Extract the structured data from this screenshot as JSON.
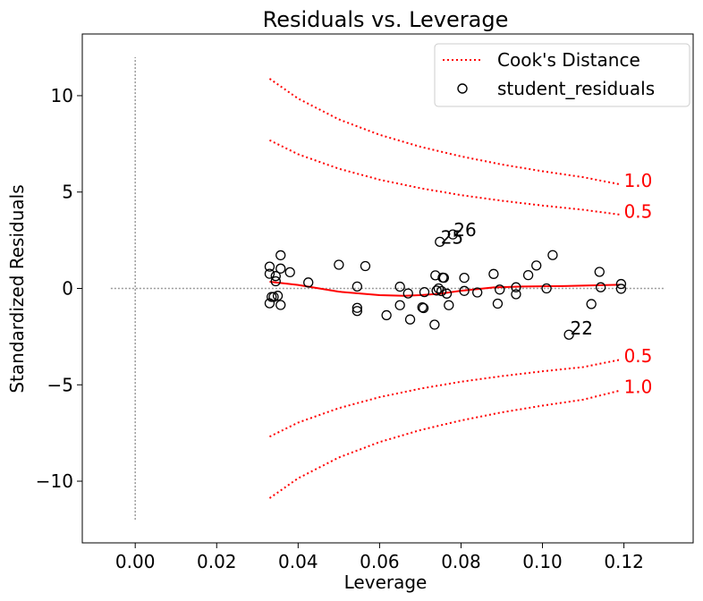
{
  "chart_data": {
    "type": "scatter",
    "title": "Residuals vs. Leverage",
    "xlabel": "Leverage",
    "ylabel": "Standardized Residuals",
    "xlim": [
      -0.013,
      0.137
    ],
    "ylim": [
      -13.2,
      13.2
    ],
    "xticks": [
      0.0,
      0.02,
      0.04,
      0.06,
      0.08,
      0.1,
      0.12
    ],
    "xtick_labels": [
      "0.00",
      "0.02",
      "0.04",
      "0.06",
      "0.08",
      "0.10",
      "0.12"
    ],
    "yticks": [
      10,
      5,
      0,
      -5,
      -10
    ],
    "ytick_labels": [
      "10",
      "5",
      "0",
      "−5",
      "−10"
    ],
    "grid": false,
    "legend_position": "top-right",
    "colors": {
      "cooks": "#ff0000",
      "points": "#000000",
      "reference": "#999999"
    },
    "series": [
      {
        "name": "student_residuals",
        "type": "scatter",
        "points": [
          [
            0.033,
            1.13
          ],
          [
            0.033,
            0.76
          ],
          [
            0.033,
            -0.77
          ],
          [
            0.0335,
            -0.44
          ],
          [
            0.034,
            -0.44
          ],
          [
            0.0345,
            0.64
          ],
          [
            0.0345,
            0.37
          ],
          [
            0.035,
            -0.38
          ],
          [
            0.0357,
            1.72
          ],
          [
            0.0357,
            1.03
          ],
          [
            0.0357,
            -0.86
          ],
          [
            0.038,
            0.84
          ],
          [
            0.0425,
            0.31
          ],
          [
            0.05,
            1.23
          ],
          [
            0.0545,
            0.1
          ],
          [
            0.0545,
            -1.01
          ],
          [
            0.0545,
            -1.17
          ],
          [
            0.0565,
            1.16
          ],
          [
            0.0617,
            -1.39
          ],
          [
            0.065,
            0.09
          ],
          [
            0.065,
            -0.87
          ],
          [
            0.067,
            -0.26
          ],
          [
            0.0675,
            -1.61
          ],
          [
            0.0705,
            -0.98
          ],
          [
            0.0708,
            -1.02
          ],
          [
            0.071,
            -0.19
          ],
          [
            0.0735,
            -1.88
          ],
          [
            0.0737,
            0.68
          ],
          [
            0.074,
            -0.11
          ],
          [
            0.0745,
            0.0
          ],
          [
            0.0748,
            2.42
          ],
          [
            0.0752,
            -0.14
          ],
          [
            0.0755,
            0.56
          ],
          [
            0.0758,
            0.55
          ],
          [
            0.0765,
            -0.27
          ],
          [
            0.077,
            -0.87
          ],
          [
            0.078,
            2.8
          ],
          [
            0.0808,
            0.55
          ],
          [
            0.0808,
            -0.13
          ],
          [
            0.084,
            -0.21
          ],
          [
            0.088,
            0.75
          ],
          [
            0.089,
            -0.79
          ],
          [
            0.0895,
            -0.06
          ],
          [
            0.0935,
            0.06
          ],
          [
            0.0935,
            -0.3
          ],
          [
            0.0965,
            0.69
          ],
          [
            0.0985,
            1.19
          ],
          [
            0.101,
            0.0
          ],
          [
            0.1025,
            1.73
          ],
          [
            0.1065,
            -2.4
          ],
          [
            0.112,
            -0.81
          ],
          [
            0.114,
            0.86
          ],
          [
            0.1143,
            0.06
          ],
          [
            0.1193,
            0.23
          ],
          [
            0.1193,
            -0.02
          ]
        ]
      },
      {
        "name": "Cook's Distance",
        "type": "line",
        "style": "dotted",
        "x": [
          0.033,
          0.04,
          0.05,
          0.06,
          0.07,
          0.08,
          0.09,
          0.1,
          0.11,
          0.119
        ],
        "upper_1_0": [
          10.88,
          9.85,
          8.77,
          7.97,
          7.35,
          6.85,
          6.43,
          6.08,
          5.77,
          5.4
        ],
        "upper_0_5": [
          7.69,
          6.96,
          6.21,
          5.64,
          5.2,
          4.84,
          4.55,
          4.3,
          4.08,
          3.83
        ],
        "lower_0_5": [
          -7.69,
          -6.96,
          -6.21,
          -5.64,
          -5.2,
          -4.84,
          -4.55,
          -4.3,
          -4.08,
          -3.7
        ],
        "lower_1_0": [
          -10.88,
          -9.85,
          -8.77,
          -7.97,
          -7.35,
          -6.85,
          -6.43,
          -6.08,
          -5.77,
          -5.3
        ]
      }
    ],
    "lowess": {
      "x": [
        0.033,
        0.04,
        0.05,
        0.06,
        0.066,
        0.07,
        0.075,
        0.08,
        0.088,
        0.095,
        0.105,
        0.119
      ],
      "y": [
        0.35,
        0.18,
        -0.17,
        -0.35,
        -0.38,
        -0.35,
        -0.27,
        -0.12,
        0.05,
        0.1,
        0.12,
        0.19
      ]
    },
    "cooks_labels": [
      {
        "text": "1.0",
        "x": 0.12,
        "y": 5.6
      },
      {
        "text": "0.5",
        "x": 0.12,
        "y": 4.0
      },
      {
        "text": "0.5",
        "x": 0.12,
        "y": -3.5
      },
      {
        "text": "1.0",
        "x": 0.12,
        "y": -5.1
      }
    ],
    "annotations": [
      {
        "text": "26",
        "x": 0.0782,
        "y": 3.05
      },
      {
        "text": "25",
        "x": 0.075,
        "y": 2.65
      },
      {
        "text": "22",
        "x": 0.1068,
        "y": -2.07
      }
    ],
    "reference_lines": {
      "h_y": 0,
      "h_x_range": [
        -0.006,
        0.13
      ],
      "v_x": 0,
      "v_y_range": [
        -12,
        12
      ]
    }
  }
}
